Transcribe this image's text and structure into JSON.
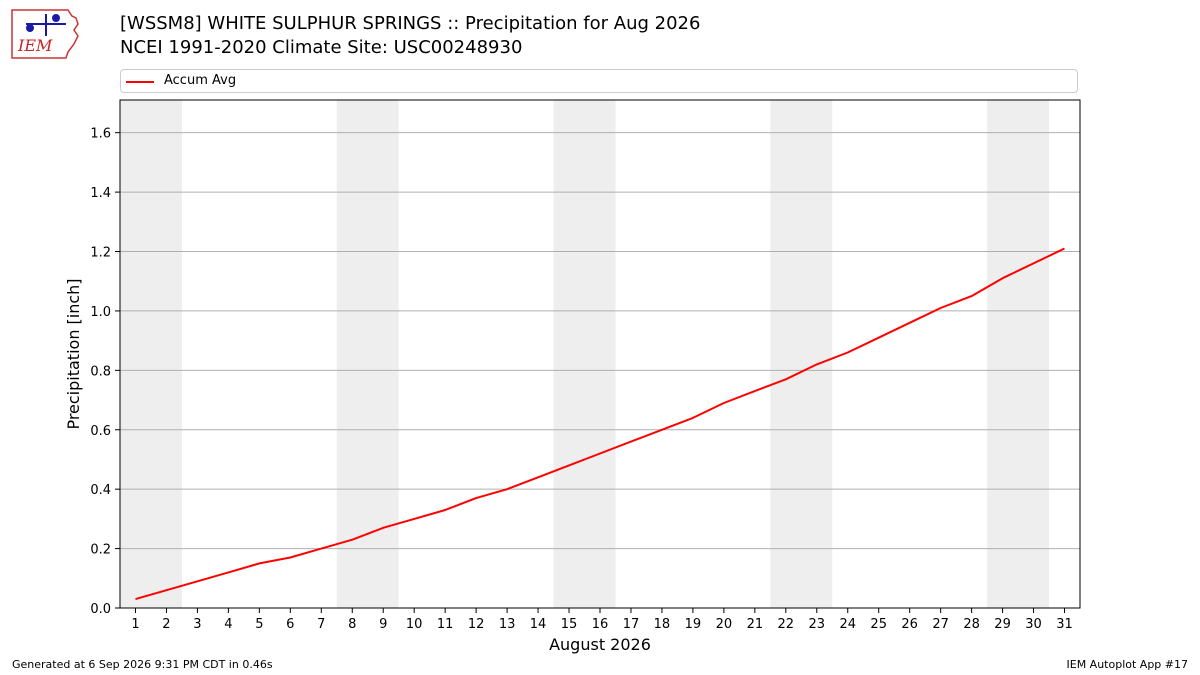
{
  "header": {
    "title_line1": "[WSSM8] WHITE SULPHUR SPRINGS :: Precipitation for Aug 2026",
    "title_line2": "NCEI 1991-2020 Climate Site: USC00248930"
  },
  "logo": {
    "text": "IEM"
  },
  "footer": {
    "generated": "Generated at 6 Sep 2026 9:31 PM CDT in 0.46s",
    "app": "IEM Autoplot App #17"
  },
  "colors": {
    "line": "#ff0000",
    "weekend_band": "#eeeeee",
    "grid": "#b0b0b0"
  },
  "chart_data": {
    "type": "line",
    "xlabel": "August 2026",
    "ylabel": "Precipitation [inch]",
    "ylim": [
      0,
      1.71
    ],
    "yticks": [
      0.0,
      0.2,
      0.4,
      0.6,
      0.8,
      1.0,
      1.2,
      1.4,
      1.6
    ],
    "ytick_labels": [
      "0.0",
      "0.2",
      "0.4",
      "0.6",
      "0.8",
      "1.0",
      "1.2",
      "1.4",
      "1.6"
    ],
    "xlim": [
      0.5,
      31.5
    ],
    "grid": "horizontal",
    "legend": "top",
    "shaded_days": [
      [
        1,
        2
      ],
      [
        8,
        9
      ],
      [
        15,
        16
      ],
      [
        22,
        23
      ],
      [
        29,
        30
      ]
    ],
    "series": [
      {
        "name": "Accum Avg",
        "x": [
          1,
          2,
          3,
          4,
          5,
          6,
          7,
          8,
          9,
          10,
          11,
          12,
          13,
          14,
          15,
          16,
          17,
          18,
          19,
          20,
          21,
          22,
          23,
          24,
          25,
          26,
          27,
          28,
          29,
          30,
          31
        ],
        "y": [
          0.03,
          0.06,
          0.09,
          0.12,
          0.15,
          0.17,
          0.2,
          0.23,
          0.27,
          0.3,
          0.33,
          0.37,
          0.4,
          0.44,
          0.48,
          0.52,
          0.56,
          0.6,
          0.64,
          0.69,
          0.73,
          0.77,
          0.82,
          0.86,
          0.91,
          0.96,
          1.01,
          1.05,
          1.11,
          1.16,
          1.21
        ]
      }
    ]
  }
}
